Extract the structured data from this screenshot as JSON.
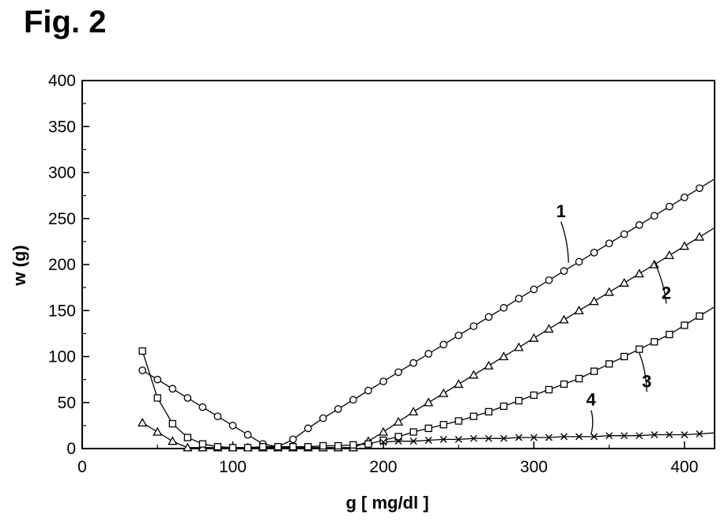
{
  "figure_label": "Fig. 2",
  "chart_data": {
    "type": "line",
    "title": "",
    "xlabel": "g [ mg/dl ]",
    "ylabel": "w (g)",
    "xlim": [
      0,
      420
    ],
    "ylim": [
      0,
      400
    ],
    "x_ticks": [
      0,
      100,
      200,
      300,
      400
    ],
    "y_ticks": [
      0,
      50,
      100,
      150,
      200,
      250,
      300,
      350,
      400
    ],
    "grid": false,
    "legend": "none",
    "series": [
      {
        "label": "1",
        "marker": "circle",
        "x": [
          40,
          50,
          60,
          70,
          80,
          90,
          100,
          110,
          120,
          130,
          140,
          150,
          160,
          170,
          180,
          190,
          200,
          210,
          220,
          230,
          240,
          250,
          260,
          270,
          280,
          290,
          300,
          310,
          320,
          330,
          340,
          350,
          360,
          370,
          380,
          390,
          400,
          410
        ],
        "y": [
          85,
          75,
          65,
          55,
          45,
          35,
          25,
          15,
          5,
          2,
          10,
          22,
          33,
          43,
          53,
          63,
          73,
          83,
          93,
          103,
          113,
          123,
          133,
          143,
          153,
          163,
          173,
          183,
          193,
          203,
          213,
          223,
          233,
          243,
          253,
          263,
          273,
          283
        ]
      },
      {
        "label": "2",
        "marker": "triangle",
        "x": [
          40,
          50,
          60,
          70,
          80,
          90,
          100,
          110,
          120,
          130,
          140,
          150,
          160,
          170,
          180,
          190,
          200,
          210,
          220,
          230,
          240,
          250,
          260,
          270,
          280,
          290,
          300,
          310,
          320,
          330,
          340,
          350,
          360,
          370,
          380,
          390,
          400,
          410
        ],
        "y": [
          28,
          18,
          8,
          1,
          1,
          1,
          1,
          1,
          1,
          1,
          1,
          1,
          1,
          1,
          1,
          8,
          18,
          29,
          40,
          50,
          60,
          70,
          80,
          90,
          100,
          110,
          120,
          130,
          140,
          150,
          160,
          170,
          180,
          190,
          200,
          210,
          220,
          230
        ]
      },
      {
        "label": "3",
        "marker": "square",
        "x": [
          40,
          50,
          60,
          70,
          80,
          90,
          100,
          110,
          120,
          130,
          140,
          150,
          160,
          170,
          180,
          190,
          200,
          210,
          220,
          230,
          240,
          250,
          260,
          270,
          280,
          290,
          300,
          310,
          320,
          330,
          340,
          350,
          360,
          370,
          380,
          390,
          400,
          410
        ],
        "y": [
          106,
          55,
          27,
          12,
          5,
          2,
          1,
          1,
          2,
          2,
          2,
          2,
          3,
          3,
          4,
          5,
          9,
          13,
          18,
          22,
          26,
          30,
          35,
          40,
          46,
          52,
          58,
          64,
          70,
          76,
          84,
          92,
          100,
          108,
          116,
          124,
          134,
          144
        ]
      },
      {
        "label": "4",
        "marker": "cross",
        "x": [
          200,
          210,
          220,
          230,
          240,
          250,
          260,
          270,
          280,
          290,
          300,
          310,
          320,
          330,
          340,
          350,
          360,
          370,
          380,
          390,
          400,
          410
        ],
        "y": [
          7,
          8,
          8,
          9,
          10,
          10,
          11,
          11,
          11,
          12,
          12,
          12,
          13,
          13,
          13,
          14,
          14,
          14,
          15,
          15,
          15,
          16
        ]
      }
    ]
  }
}
